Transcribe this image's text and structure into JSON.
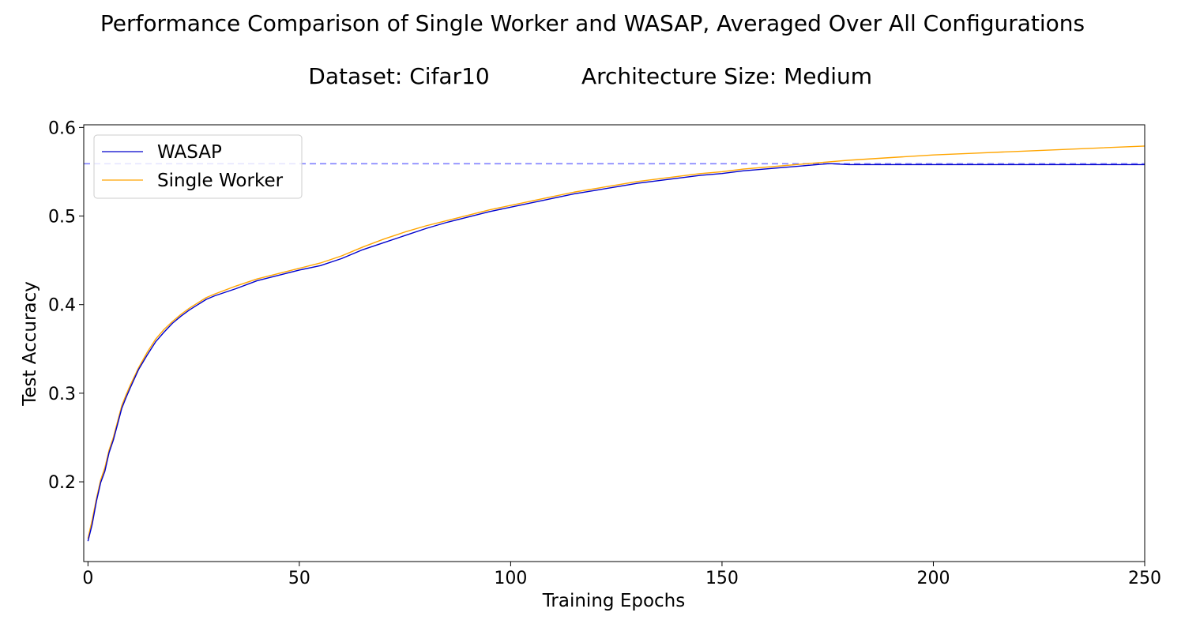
{
  "chart_data": {
    "type": "line",
    "title": "Performance Comparison of Single Worker and WASAP, Averaged Over All Configurations",
    "subtitle_left": "Dataset: Cifar10",
    "subtitle_right": "Architecture Size: Medium",
    "xlabel": "Training Epochs",
    "ylabel": "Test Accuracy",
    "xlim": [
      -1,
      250
    ],
    "ylim": [
      0.11,
      0.603
    ],
    "xticks": [
      "0",
      "50",
      "100",
      "150",
      "200",
      "250"
    ],
    "yticks": [
      "0.2",
      "0.3",
      "0.4",
      "0.5",
      "0.6"
    ],
    "grid": false,
    "legend_position": "upper-left",
    "reference_line": {
      "y": 0.559,
      "style": "dashed",
      "color": "#8080ff"
    },
    "series": [
      {
        "name": "WASAP",
        "color": "#0000cc",
        "x": [
          0,
          1,
          2,
          3,
          4,
          5,
          6,
          7,
          8,
          9,
          10,
          12,
          14,
          16,
          18,
          20,
          22,
          24,
          26,
          28,
          30,
          35,
          40,
          45,
          50,
          55,
          60,
          65,
          70,
          75,
          80,
          85,
          90,
          95,
          100,
          105,
          110,
          115,
          120,
          125,
          130,
          135,
          140,
          145,
          150,
          155,
          160,
          165,
          170,
          175,
          176,
          180,
          200,
          220,
          240,
          250
        ],
        "y": [
          0.133,
          0.152,
          0.178,
          0.199,
          0.212,
          0.233,
          0.247,
          0.265,
          0.283,
          0.295,
          0.306,
          0.327,
          0.343,
          0.358,
          0.369,
          0.379,
          0.387,
          0.394,
          0.4,
          0.406,
          0.41,
          0.418,
          0.427,
          0.433,
          0.439,
          0.444,
          0.452,
          0.462,
          0.47,
          0.478,
          0.486,
          0.493,
          0.499,
          0.505,
          0.51,
          0.515,
          0.52,
          0.525,
          0.529,
          0.533,
          0.537,
          0.54,
          0.543,
          0.546,
          0.548,
          0.551,
          0.553,
          0.555,
          0.557,
          0.559,
          0.559,
          0.558,
          0.558,
          0.558,
          0.558,
          0.558
        ]
      },
      {
        "name": "Single Worker",
        "color": "#ffa500",
        "x": [
          0,
          1,
          2,
          3,
          4,
          5,
          6,
          7,
          8,
          9,
          10,
          12,
          14,
          16,
          18,
          20,
          22,
          24,
          26,
          28,
          30,
          35,
          40,
          45,
          50,
          55,
          60,
          65,
          70,
          75,
          80,
          85,
          90,
          95,
          100,
          105,
          110,
          115,
          120,
          125,
          130,
          135,
          140,
          145,
          150,
          155,
          160,
          165,
          170,
          175,
          180,
          190,
          200,
          210,
          220,
          230,
          240,
          250
        ],
        "y": [
          0.136,
          0.157,
          0.181,
          0.202,
          0.216,
          0.236,
          0.25,
          0.268,
          0.286,
          0.298,
          0.309,
          0.329,
          0.346,
          0.361,
          0.372,
          0.381,
          0.389,
          0.396,
          0.402,
          0.408,
          0.412,
          0.421,
          0.429,
          0.435,
          0.441,
          0.447,
          0.455,
          0.465,
          0.474,
          0.482,
          0.489,
          0.495,
          0.501,
          0.507,
          0.512,
          0.517,
          0.522,
          0.527,
          0.531,
          0.535,
          0.539,
          0.542,
          0.545,
          0.548,
          0.55,
          0.553,
          0.555,
          0.557,
          0.559,
          0.561,
          0.563,
          0.566,
          0.569,
          0.571,
          0.573,
          0.575,
          0.577,
          0.579
        ]
      }
    ]
  }
}
